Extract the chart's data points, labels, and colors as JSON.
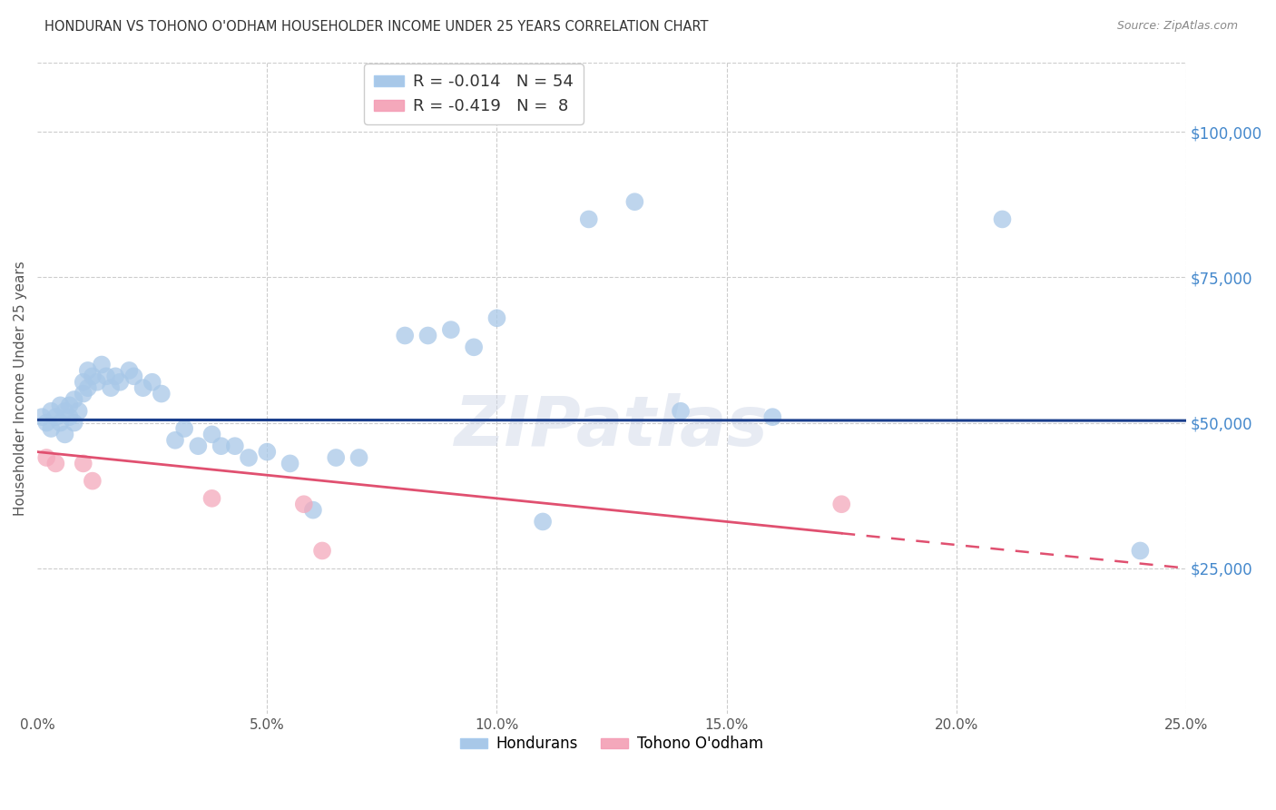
{
  "title": "HONDURAN VS TOHONO O'ODHAM HOUSEHOLDER INCOME UNDER 25 YEARS CORRELATION CHART",
  "source": "Source: ZipAtlas.com",
  "ylabel": "Householder Income Under 25 years",
  "xlabel_vals": [
    0.0,
    0.05,
    0.1,
    0.15,
    0.2,
    0.25
  ],
  "ytick_vals": [
    25000,
    50000,
    75000,
    100000
  ],
  "ylim": [
    0,
    112000
  ],
  "xlim": [
    0.0,
    0.25
  ],
  "honduran_R": "-0.014",
  "honduran_N": "54",
  "tohono_R": "-0.419",
  "tohono_N": "8",
  "honduran_color": "#a8c8e8",
  "tohono_color": "#f4a8bb",
  "trend_honduran_color": "#1a3e8c",
  "trend_tohono_color": "#e05070",
  "background_color": "#ffffff",
  "grid_color": "#cccccc",
  "honduran_x": [
    0.001,
    0.002,
    0.003,
    0.003,
    0.004,
    0.005,
    0.005,
    0.006,
    0.006,
    0.007,
    0.007,
    0.008,
    0.008,
    0.009,
    0.01,
    0.01,
    0.011,
    0.011,
    0.012,
    0.013,
    0.014,
    0.015,
    0.016,
    0.017,
    0.018,
    0.02,
    0.021,
    0.023,
    0.025,
    0.027,
    0.03,
    0.032,
    0.035,
    0.038,
    0.04,
    0.043,
    0.046,
    0.05,
    0.055,
    0.06,
    0.065,
    0.07,
    0.08,
    0.085,
    0.09,
    0.095,
    0.1,
    0.11,
    0.12,
    0.13,
    0.14,
    0.16,
    0.21,
    0.24
  ],
  "honduran_y": [
    51000,
    50000,
    52000,
    49000,
    51000,
    53000,
    50000,
    52000,
    48000,
    51000,
    53000,
    50000,
    54000,
    52000,
    57000,
    55000,
    59000,
    56000,
    58000,
    57000,
    60000,
    58000,
    56000,
    58000,
    57000,
    59000,
    58000,
    56000,
    57000,
    55000,
    47000,
    49000,
    46000,
    48000,
    46000,
    46000,
    44000,
    45000,
    43000,
    35000,
    44000,
    44000,
    65000,
    65000,
    66000,
    63000,
    68000,
    33000,
    85000,
    88000,
    52000,
    51000,
    85000,
    28000
  ],
  "tohono_x": [
    0.002,
    0.004,
    0.01,
    0.012,
    0.038,
    0.058,
    0.062,
    0.175
  ],
  "tohono_y": [
    44000,
    43000,
    43000,
    40000,
    37000,
    36000,
    28000,
    36000
  ]
}
